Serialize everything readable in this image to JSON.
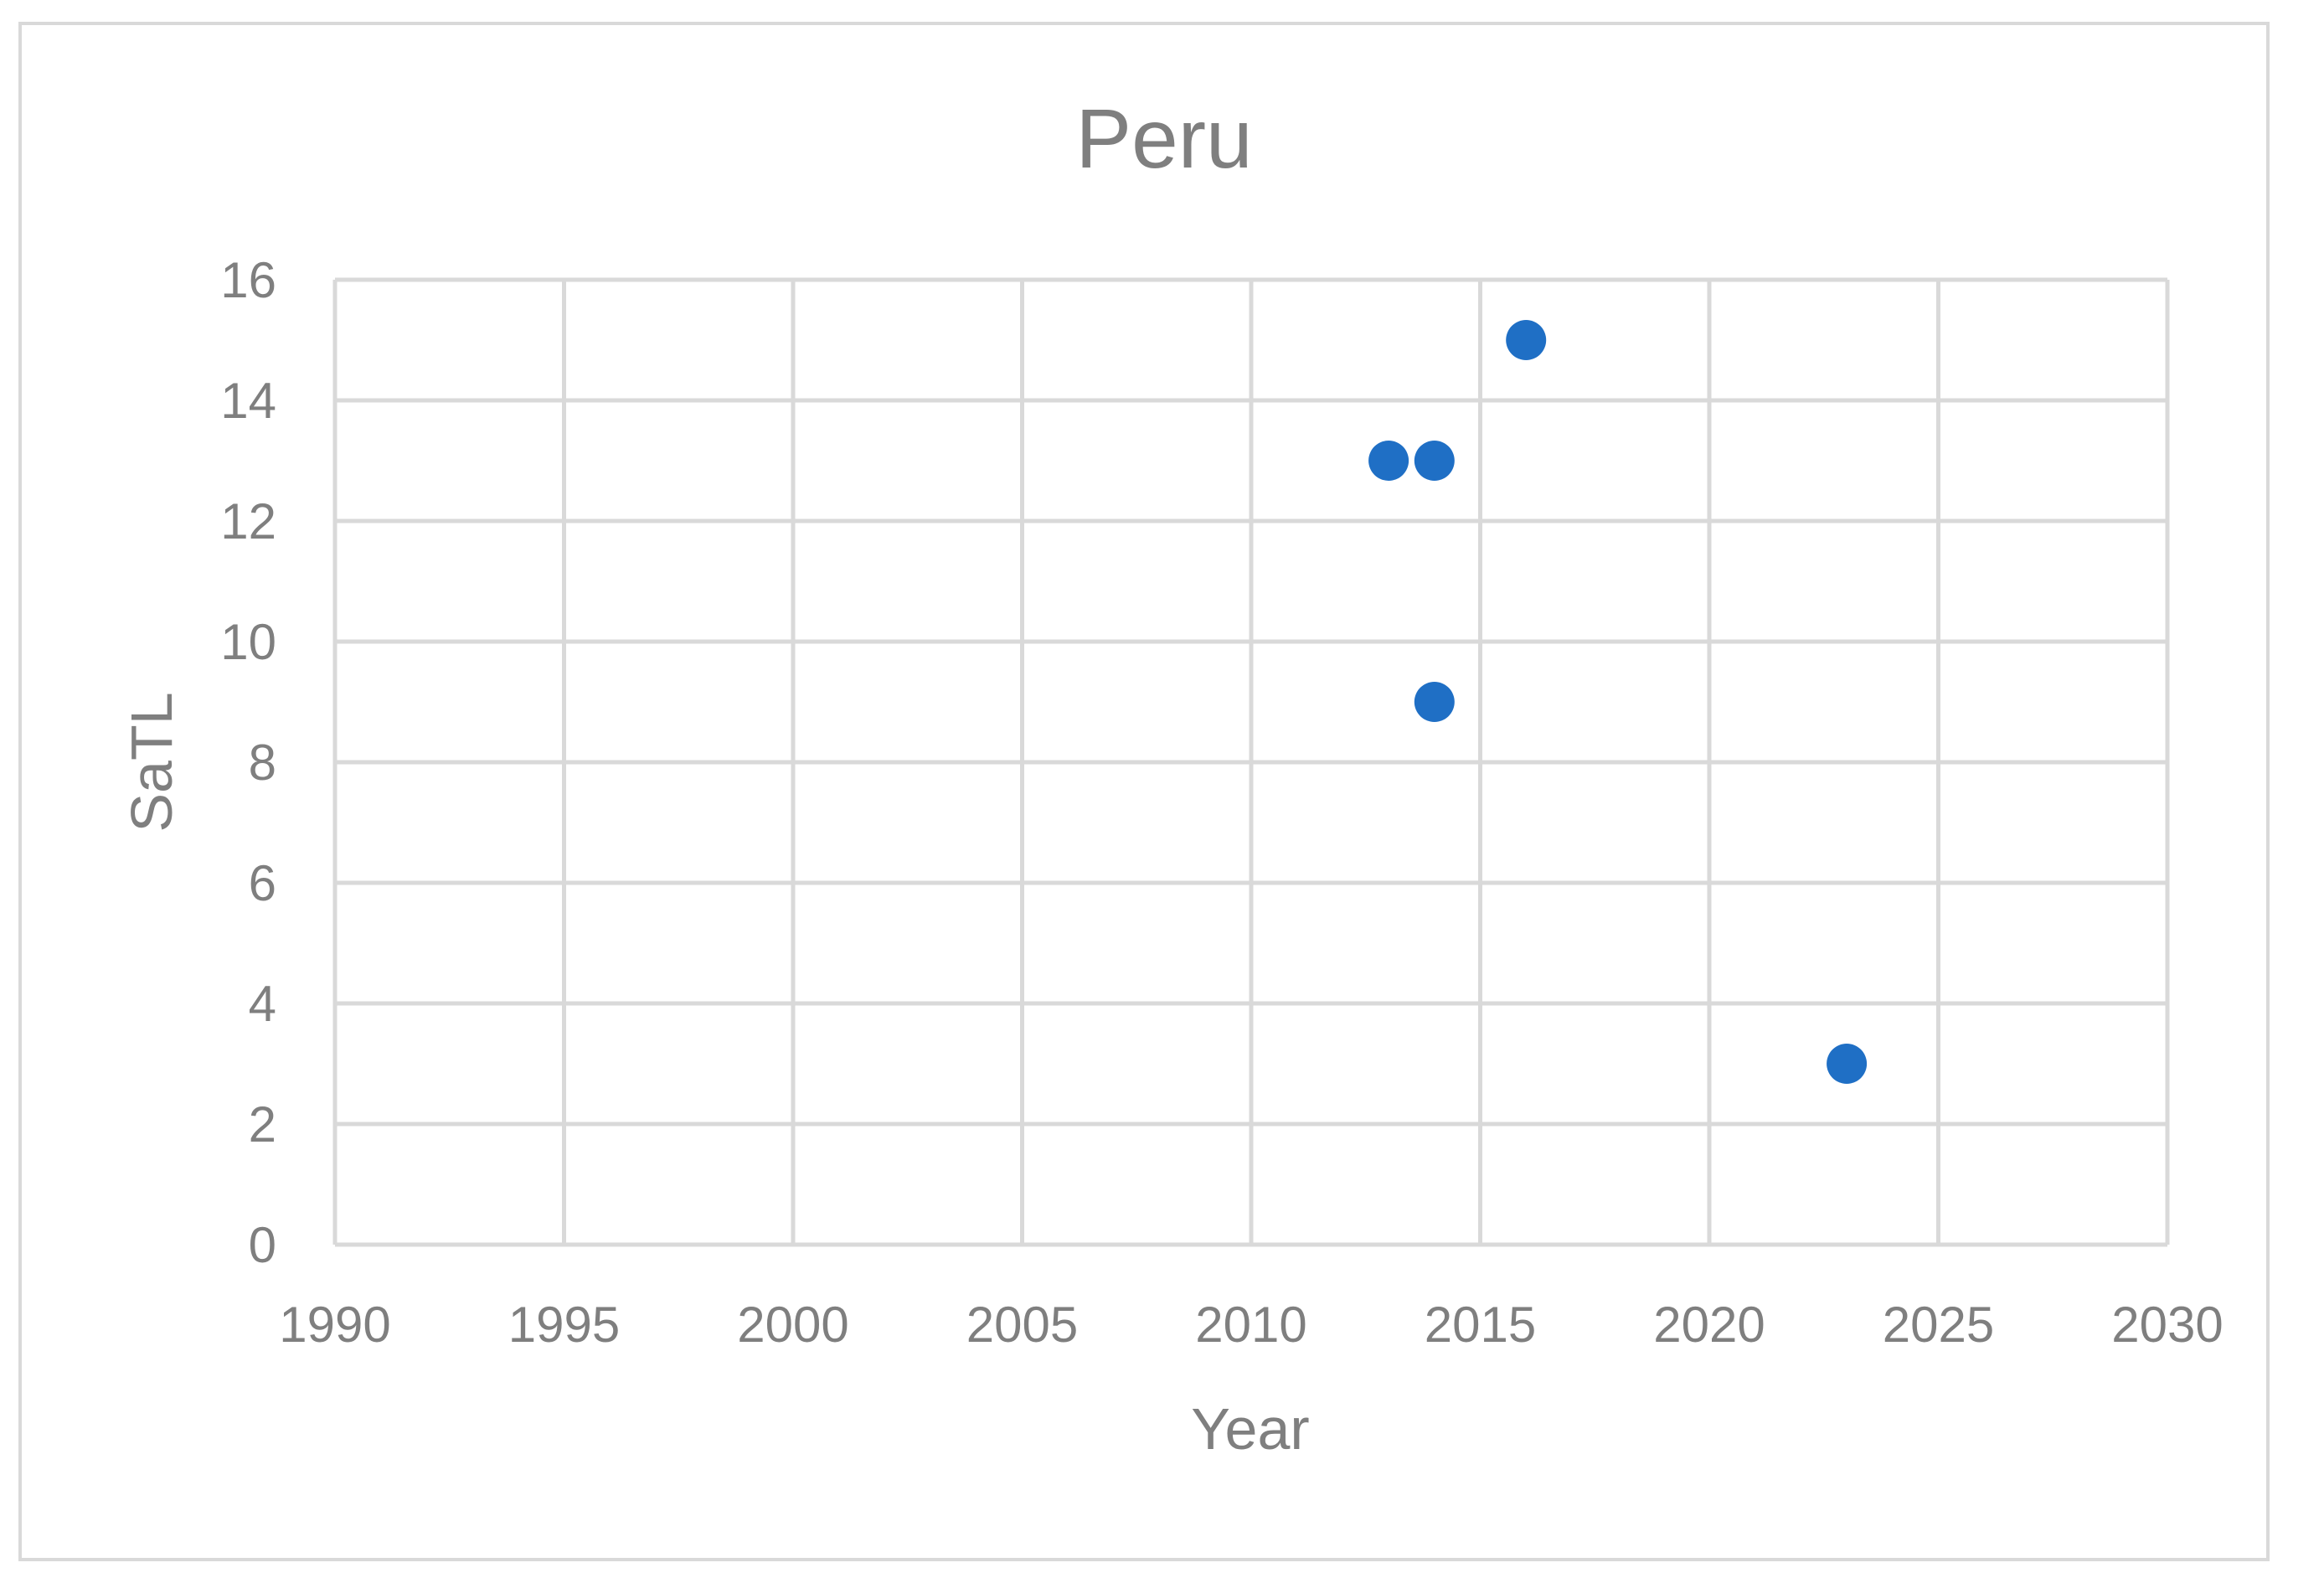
{
  "chart_data": {
    "type": "scatter",
    "title": "Peru",
    "xlabel": "Year",
    "ylabel": "SaTL",
    "xlim": [
      1990,
      2030
    ],
    "ylim": [
      0,
      16
    ],
    "x_ticks": [
      1990,
      1995,
      2000,
      2005,
      2010,
      2015,
      2020,
      2025,
      2030
    ],
    "y_ticks": [
      0,
      2,
      4,
      6,
      8,
      10,
      12,
      14,
      16
    ],
    "grid": true,
    "legend": "none",
    "marker_color": "#1f6fc5",
    "grid_color": "#d9d9d9",
    "points": [
      {
        "x": 2013,
        "y": 13
      },
      {
        "x": 2014,
        "y": 13
      },
      {
        "x": 2014,
        "y": 9
      },
      {
        "x": 2016,
        "y": 15
      },
      {
        "x": 2023,
        "y": 3
      }
    ]
  }
}
